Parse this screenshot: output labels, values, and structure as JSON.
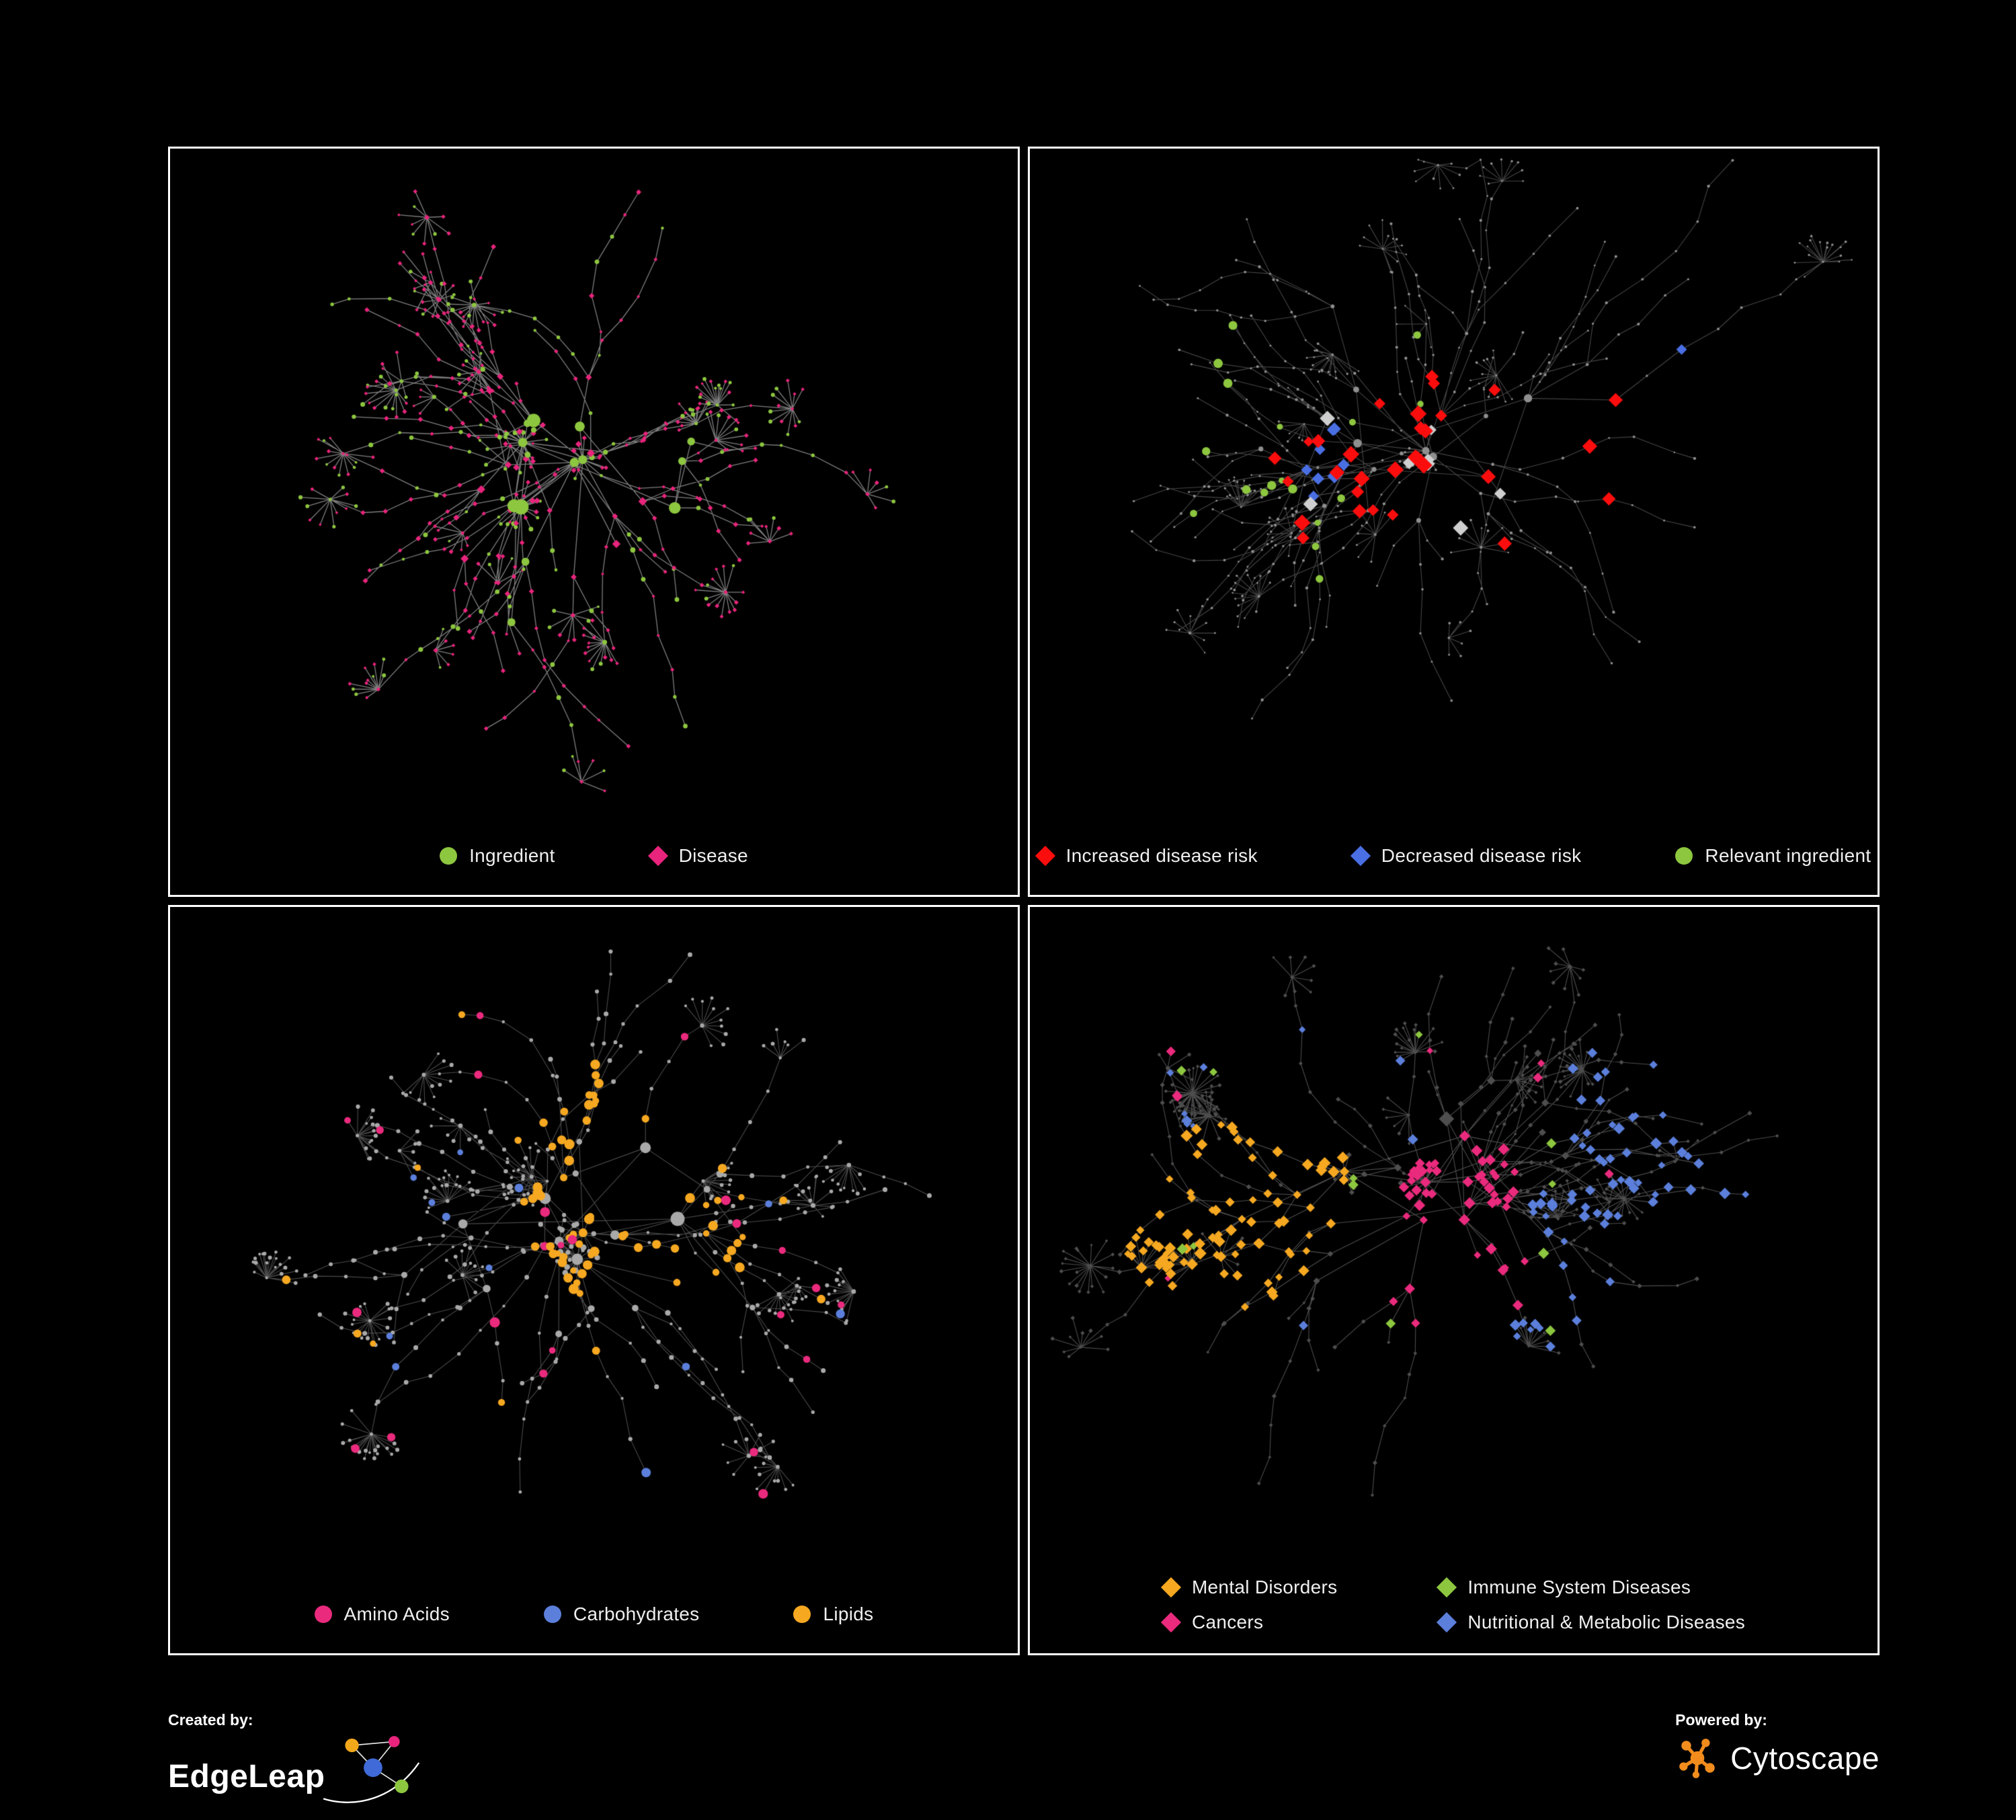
{
  "page": {
    "background": "#000000",
    "panel_border": "#ffffff"
  },
  "panels": [
    {
      "id": "ingredient-disease",
      "legend": [
        {
          "label": "Ingredient",
          "shape": "circle",
          "color": "#8dc63f"
        },
        {
          "label": "Disease",
          "shape": "diamond",
          "color": "#e8247c"
        }
      ]
    },
    {
      "id": "disease-risk",
      "neutral_marker_color": "#cfcfcf",
      "legend": [
        {
          "label": "Increased disease risk",
          "shape": "diamond",
          "color": "#fb0d0d"
        },
        {
          "label": "Decreased disease risk",
          "shape": "diamond",
          "color": "#4a6fe3"
        },
        {
          "label": "Relevant ingredient",
          "shape": "circle",
          "color": "#8dc63f"
        }
      ]
    },
    {
      "id": "nutrient-classes",
      "legend": [
        {
          "label": "Amino Acids",
          "shape": "circle",
          "color": "#ea2a7d"
        },
        {
          "label": "Carbohydrates",
          "shape": "circle",
          "color": "#5b7fdb"
        },
        {
          "label": "Lipids",
          "shape": "circle",
          "color": "#f6a821"
        }
      ]
    },
    {
      "id": "disease-classes",
      "legend_columns": 2,
      "legend": [
        {
          "label": "Mental Disorders",
          "shape": "diamond",
          "color": "#f6a821"
        },
        {
          "label": "Immune System Diseases",
          "shape": "diamond",
          "color": "#8dc63f"
        },
        {
          "label": "Cancers",
          "shape": "diamond",
          "color": "#ea2a7d"
        },
        {
          "label": "Nutritional & Metabolic Diseases",
          "shape": "diamond",
          "color": "#5b7fdb"
        }
      ]
    }
  ],
  "footer": {
    "created_by_label": "Created by:",
    "created_by_brand": "EdgeLeap",
    "powered_by_label": "Powered by:",
    "powered_by_brand": "Cytoscape"
  }
}
